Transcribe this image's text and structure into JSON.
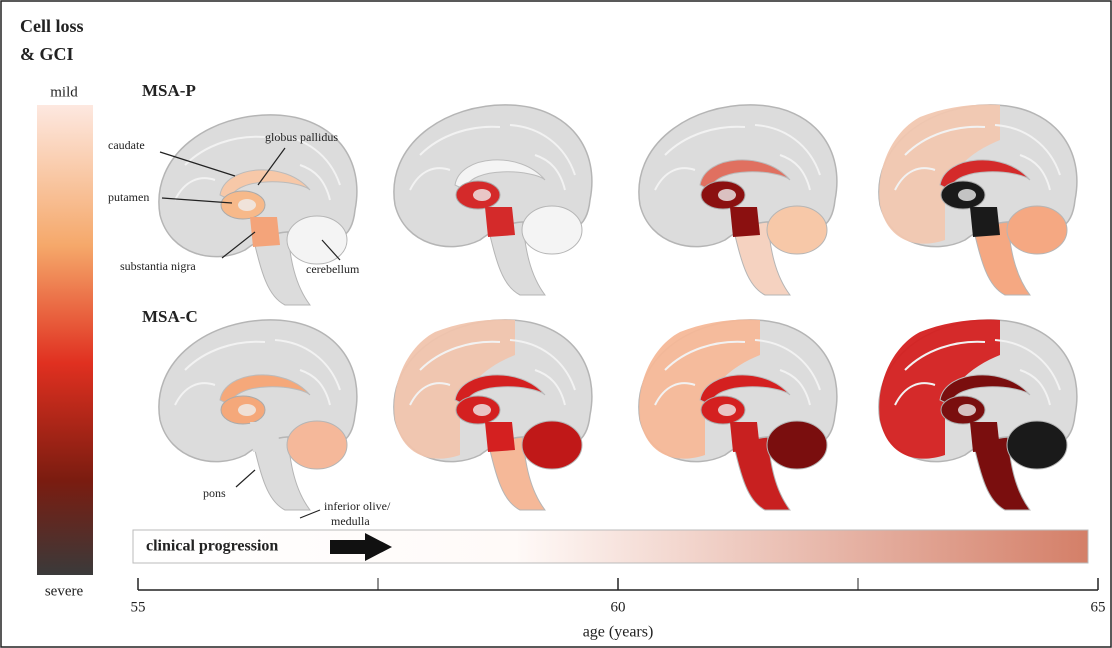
{
  "legend": {
    "title_line1": "Cell loss",
    "title_line2": "& GCI",
    "top": "mild",
    "bottom": "severe"
  },
  "rows": [
    {
      "title": "MSA-P"
    },
    {
      "title": "MSA-C"
    }
  ],
  "labels": {
    "caudate": "caudate",
    "globus_pallidus": "globus pallidus",
    "putamen": "putamen",
    "substantia_nigra": "substantia nigra",
    "cerebellum": "cerebellum",
    "pons": "pons",
    "inferior_olive_line1": "inferior olive/",
    "inferior_olive_line2": "medulla"
  },
  "progression": {
    "label": "clinical progression"
  },
  "axis": {
    "label": "age (years)",
    "xlim": [
      55,
      65
    ],
    "ticks": [
      55,
      60,
      65
    ],
    "minor_ticks": [
      57.5,
      62.5
    ]
  }
}
